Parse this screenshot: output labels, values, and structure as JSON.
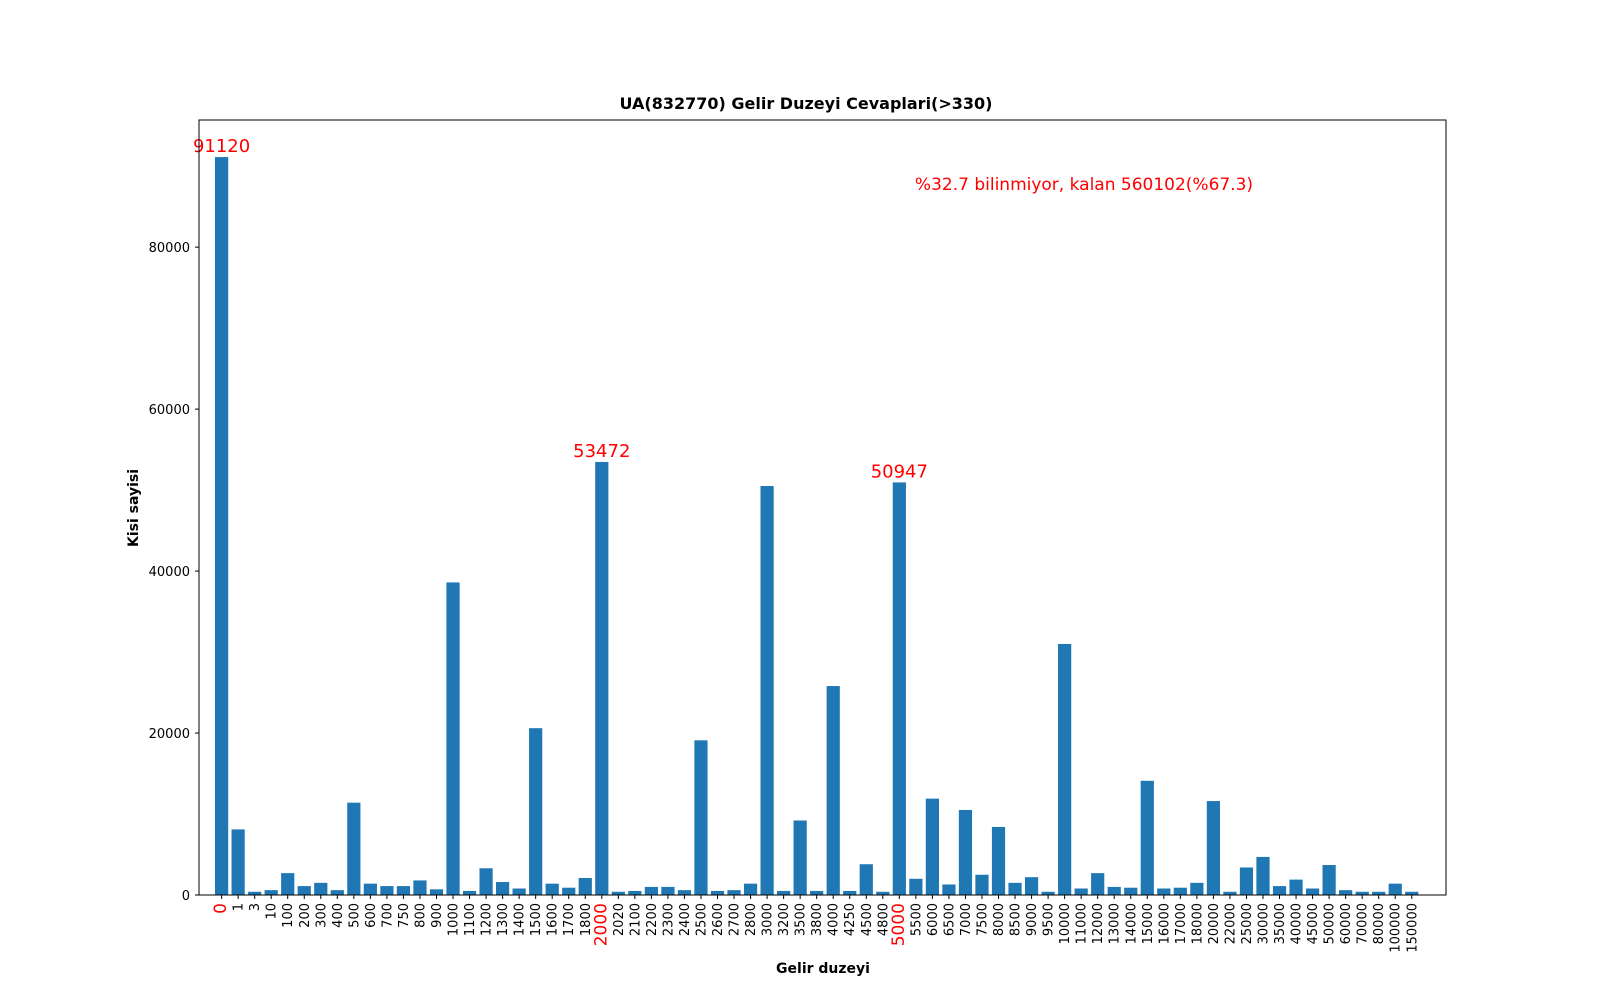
{
  "chart_data": {
    "type": "bar",
    "title": "UA(832770) Gelir Duzeyi Cevaplari(>330)",
    "xlabel": "Gelir duzeyi",
    "ylabel": "Kisi sayisi",
    "ylim": [
      0,
      95700
    ],
    "yticks": [
      0,
      20000,
      40000,
      60000,
      80000
    ],
    "grid": false,
    "bar_color": "#1f77b4",
    "highlight_color": "#ff0000",
    "highlight_categories": [
      "0",
      "2000",
      "5000"
    ],
    "categories": [
      "0",
      "1",
      "3",
      "10",
      "100",
      "200",
      "300",
      "400",
      "500",
      "600",
      "700",
      "750",
      "800",
      "900",
      "1000",
      "1100",
      "1200",
      "1300",
      "1400",
      "1500",
      "1600",
      "1700",
      "1800",
      "2000",
      "2020",
      "2100",
      "2200",
      "2300",
      "2400",
      "2500",
      "2600",
      "2700",
      "2800",
      "3000",
      "3200",
      "3500",
      "3800",
      "4000",
      "4250",
      "4500",
      "4800",
      "5000",
      "5500",
      "6000",
      "6500",
      "7000",
      "7500",
      "8000",
      "8500",
      "9000",
      "9500",
      "10000",
      "11000",
      "12000",
      "13000",
      "14000",
      "15000",
      "16000",
      "17000",
      "18000",
      "20000",
      "22000",
      "25000",
      "30000",
      "35000",
      "40000",
      "45000",
      "50000",
      "60000",
      "70000",
      "80000",
      "100000",
      "150000"
    ],
    "values": [
      91120,
      8100,
      400,
      600,
      2700,
      1100,
      1500,
      600,
      11400,
      1400,
      1100,
      1100,
      1800,
      700,
      38600,
      500,
      3300,
      1600,
      800,
      20600,
      1400,
      900,
      2100,
      53472,
      400,
      500,
      1000,
      1000,
      600,
      19100,
      500,
      600,
      1400,
      50500,
      500,
      9200,
      500,
      25800,
      500,
      3800,
      400,
      50947,
      2000,
      11900,
      1300,
      10500,
      2500,
      8400,
      1500,
      2200,
      400,
      31000,
      800,
      2700,
      1000,
      900,
      14100,
      800,
      900,
      1500,
      11600,
      400,
      3400,
      4700,
      1100,
      1900,
      800,
      3700,
      600,
      400,
      400,
      1400,
      400
    ],
    "annotations": [
      {
        "category": "0",
        "text": "91120"
      },
      {
        "category": "2000",
        "text": "53472"
      },
      {
        "category": "5000",
        "text": "50947"
      }
    ],
    "note": "%32.7 bilinmiyor, kalan 560102(%67.3)"
  }
}
